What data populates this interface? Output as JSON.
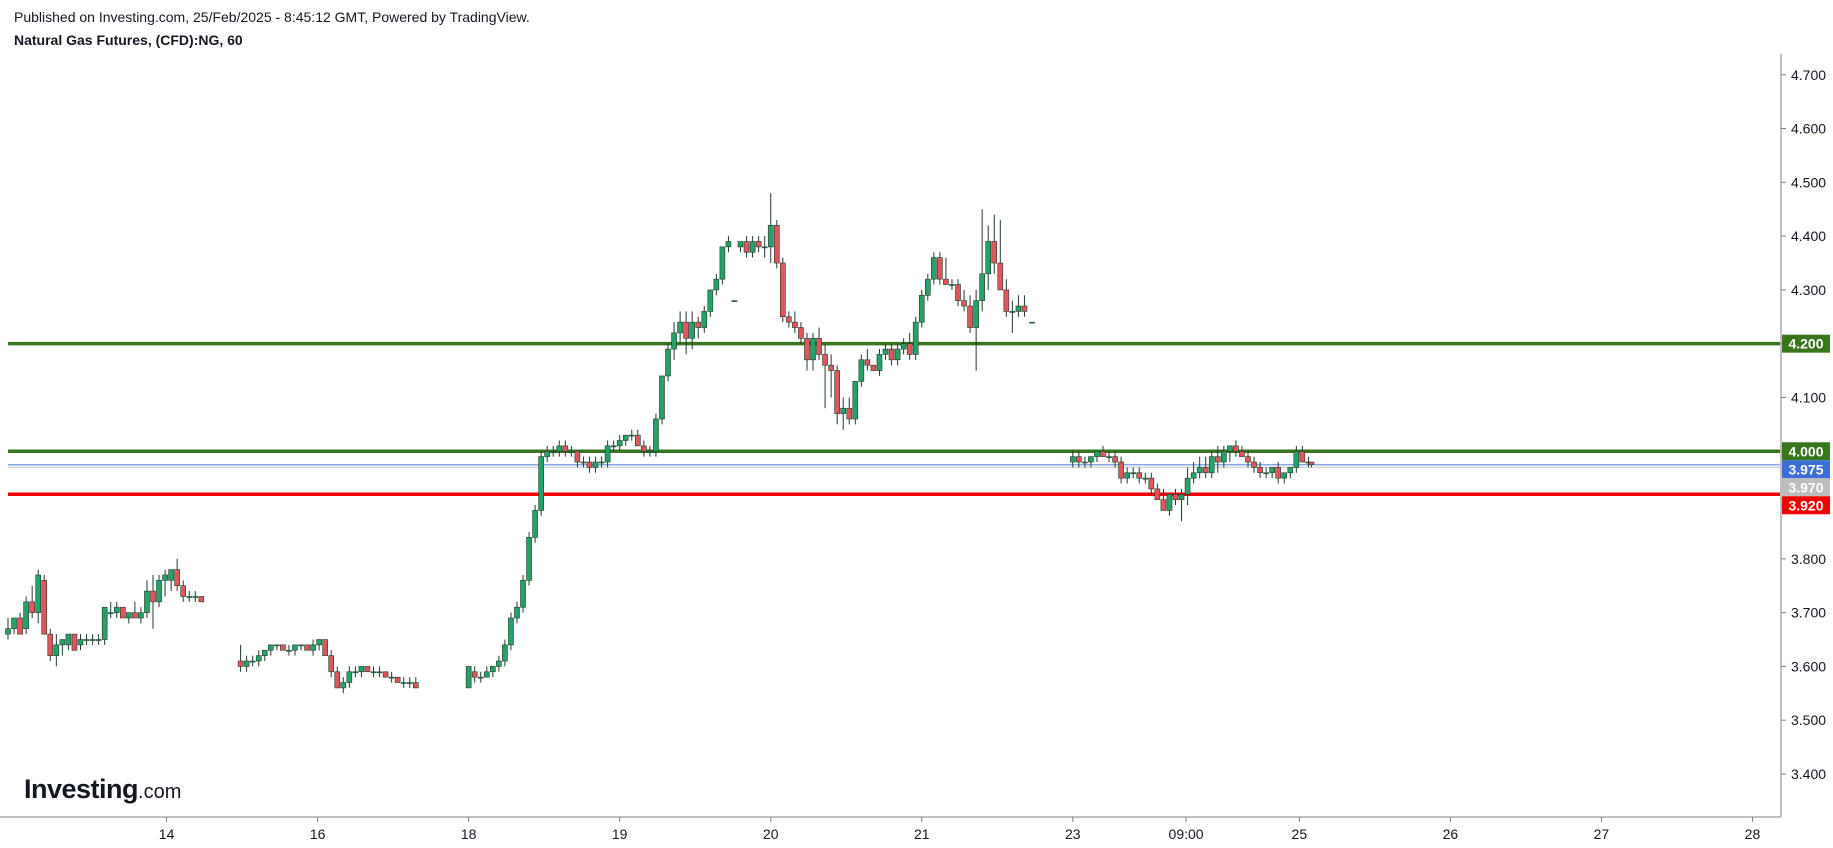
{
  "header": {
    "published": "Published on Investing.com, 25/Feb/2025 - 8:45:12 GMT, Powered by TradingView.",
    "title": "Natural Gas Futures, (CFD):NG, 60"
  },
  "logo": {
    "main": "Investing",
    "suffix": ".com"
  },
  "colors": {
    "up": "#26a269",
    "down": "#e0565b",
    "wick": "#1e3a2a",
    "support_green": "#38761d",
    "resistance_red": "#f00000",
    "current_price_badge": "#3b6fd6",
    "gray_badge": "#bdbdbd",
    "axis": "#7f7f7f"
  },
  "chart_data": {
    "type": "candlestick",
    "title": "Natural Gas Futures, (CFD):NG, 60",
    "timeframe": "60",
    "ylim": [
      3.32,
      4.72
    ],
    "y_ticks": [
      "4.700",
      "4.600",
      "4.500",
      "4.400",
      "4.300",
      "4.200",
      "4.100",
      "4.000",
      "3.900",
      "3.800",
      "3.700",
      "3.600",
      "3.500",
      "3.400"
    ],
    "x_ticks": [
      {
        "label": "14",
        "x": 0.0
      },
      {
        "label": "16",
        "x": 1.0
      },
      {
        "label": "18",
        "x": 2.0
      },
      {
        "label": "19",
        "x": 3.0
      },
      {
        "label": "20",
        "x": 4.0
      },
      {
        "label": "21",
        "x": 5.0
      },
      {
        "label": "23",
        "x": 6.0
      },
      {
        "label": "09:00",
        "x": 6.75
      },
      {
        "label": "25",
        "x": 7.5
      },
      {
        "label": "26",
        "x": 8.5
      },
      {
        "label": "27",
        "x": 9.5
      },
      {
        "label": "28",
        "x": 10.5
      }
    ],
    "x_range": [
      -1.05,
      10.55
    ],
    "horizontal_lines": [
      {
        "label": "4.200",
        "value": 4.2,
        "color": "#38761d"
      },
      {
        "label": "4.000",
        "value": 4.0,
        "color": "#38761d"
      },
      {
        "label": "3.920",
        "value": 3.92,
        "color": "#f00000"
      }
    ],
    "price_markers": [
      {
        "label": "3.975",
        "value": 3.975,
        "color": "#3b6fd6"
      },
      {
        "label": "3.970",
        "value": 3.97,
        "color": "#bdbdbd"
      }
    ],
    "candles": [
      [
        -1.05,
        3.66,
        3.69,
        3.65,
        3.67
      ],
      [
        -1.01,
        3.67,
        3.69,
        3.66,
        3.69
      ],
      [
        -0.97,
        3.69,
        3.7,
        3.66,
        3.66
      ],
      [
        -0.93,
        3.67,
        3.73,
        3.66,
        3.72
      ],
      [
        -0.89,
        3.72,
        3.75,
        3.69,
        3.7
      ],
      [
        -0.85,
        3.7,
        3.78,
        3.68,
        3.77
      ],
      [
        -0.81,
        3.76,
        3.77,
        3.66,
        3.66
      ],
      [
        -0.77,
        3.66,
        3.67,
        3.61,
        3.62
      ],
      [
        -0.73,
        3.62,
        3.66,
        3.6,
        3.64
      ],
      [
        -0.69,
        3.64,
        3.65,
        3.62,
        3.65
      ],
      [
        -0.65,
        3.64,
        3.66,
        3.63,
        3.66
      ],
      [
        -0.61,
        3.66,
        3.66,
        3.63,
        3.63
      ],
      [
        -0.57,
        3.64,
        3.66,
        3.63,
        3.65
      ],
      [
        -0.53,
        3.65,
        3.66,
        3.64,
        3.65
      ],
      [
        -0.49,
        3.65,
        3.66,
        3.64,
        3.65
      ],
      [
        -0.45,
        3.65,
        3.66,
        3.64,
        3.65
      ],
      [
        -0.41,
        3.65,
        3.71,
        3.64,
        3.71
      ],
      [
        -0.37,
        3.7,
        3.72,
        3.69,
        3.7
      ],
      [
        -0.33,
        3.7,
        3.72,
        3.69,
        3.71
      ],
      [
        -0.29,
        3.71,
        3.71,
        3.69,
        3.69
      ],
      [
        -0.25,
        3.69,
        3.7,
        3.68,
        3.7
      ],
      [
        -0.21,
        3.7,
        3.72,
        3.69,
        3.69
      ],
      [
        -0.17,
        3.69,
        3.71,
        3.68,
        3.7
      ],
      [
        -0.13,
        3.7,
        3.76,
        3.69,
        3.74
      ],
      [
        -0.09,
        3.74,
        3.77,
        3.67,
        3.72
      ],
      [
        -0.05,
        3.72,
        3.77,
        3.71,
        3.76
      ],
      [
        -0.01,
        3.76,
        3.78,
        3.73,
        3.77
      ],
      [
        0.03,
        3.76,
        3.78,
        3.74,
        3.78
      ],
      [
        0.07,
        3.78,
        3.8,
        3.74,
        3.75
      ],
      [
        0.11,
        3.75,
        3.76,
        3.72,
        3.73
      ],
      [
        0.15,
        3.73,
        3.74,
        3.72,
        3.73
      ],
      [
        0.19,
        3.73,
        3.74,
        3.72,
        3.73
      ],
      [
        0.23,
        3.73,
        3.73,
        3.72,
        3.72
      ],
      [
        0.49,
        3.61,
        3.64,
        3.59,
        3.6
      ],
      [
        0.53,
        3.6,
        3.62,
        3.59,
        3.61
      ],
      [
        0.57,
        3.61,
        3.62,
        3.6,
        3.61
      ],
      [
        0.61,
        3.61,
        3.63,
        3.6,
        3.62
      ],
      [
        0.65,
        3.62,
        3.63,
        3.61,
        3.63
      ],
      [
        0.69,
        3.63,
        3.64,
        3.62,
        3.64
      ],
      [
        0.73,
        3.64,
        3.64,
        3.63,
        3.64
      ],
      [
        0.77,
        3.64,
        3.64,
        3.63,
        3.63
      ],
      [
        0.81,
        3.63,
        3.64,
        3.62,
        3.63
      ],
      [
        0.85,
        3.63,
        3.64,
        3.62,
        3.64
      ],
      [
        0.89,
        3.64,
        3.64,
        3.63,
        3.64
      ],
      [
        0.93,
        3.64,
        3.64,
        3.63,
        3.63
      ],
      [
        0.97,
        3.63,
        3.65,
        3.62,
        3.64
      ],
      [
        1.01,
        3.64,
        3.65,
        3.63,
        3.65
      ],
      [
        1.05,
        3.65,
        3.65,
        3.62,
        3.62
      ],
      [
        1.09,
        3.62,
        3.63,
        3.58,
        3.59
      ],
      [
        1.13,
        3.59,
        3.6,
        3.56,
        3.56
      ],
      [
        1.17,
        3.56,
        3.58,
        3.55,
        3.57
      ],
      [
        1.21,
        3.57,
        3.6,
        3.56,
        3.59
      ],
      [
        1.25,
        3.59,
        3.6,
        3.58,
        3.59
      ],
      [
        1.29,
        3.59,
        3.6,
        3.58,
        3.6
      ],
      [
        1.33,
        3.6,
        3.6,
        3.59,
        3.59
      ],
      [
        1.37,
        3.59,
        3.6,
        3.58,
        3.59
      ],
      [
        1.41,
        3.59,
        3.6,
        3.58,
        3.59
      ],
      [
        1.45,
        3.59,
        3.59,
        3.58,
        3.58
      ],
      [
        1.49,
        3.58,
        3.59,
        3.57,
        3.58
      ],
      [
        1.53,
        3.58,
        3.58,
        3.57,
        3.57
      ],
      [
        1.57,
        3.57,
        3.58,
        3.56,
        3.57
      ],
      [
        1.61,
        3.57,
        3.58,
        3.56,
        3.57
      ],
      [
        1.65,
        3.57,
        3.58,
        3.56,
        3.56
      ],
      [
        2.0,
        3.56,
        3.6,
        3.56,
        3.6
      ],
      [
        2.04,
        3.59,
        3.6,
        3.57,
        3.58
      ],
      [
        2.08,
        3.58,
        3.59,
        3.57,
        3.58
      ],
      [
        2.12,
        3.58,
        3.6,
        3.58,
        3.59
      ],
      [
        2.16,
        3.59,
        3.6,
        3.58,
        3.6
      ],
      [
        2.2,
        3.6,
        3.62,
        3.59,
        3.61
      ],
      [
        2.24,
        3.61,
        3.65,
        3.6,
        3.64
      ],
      [
        2.28,
        3.64,
        3.7,
        3.63,
        3.69
      ],
      [
        2.32,
        3.69,
        3.72,
        3.68,
        3.71
      ],
      [
        2.36,
        3.71,
        3.77,
        3.7,
        3.76
      ],
      [
        2.4,
        3.76,
        3.85,
        3.75,
        3.84
      ],
      [
        2.44,
        3.84,
        3.9,
        3.83,
        3.89
      ],
      [
        2.48,
        3.89,
        4.0,
        3.88,
        3.99
      ],
      [
        2.52,
        3.99,
        4.01,
        3.98,
        4.0
      ],
      [
        2.56,
        4.0,
        4.01,
        3.99,
        4.0
      ],
      [
        2.6,
        4.0,
        4.02,
        3.99,
        4.01
      ],
      [
        2.64,
        4.01,
        4.02,
        3.99,
        4.0
      ],
      [
        2.68,
        4.0,
        4.01,
        3.99,
        4.0
      ],
      [
        2.72,
        4.0,
        4.0,
        3.97,
        3.98
      ],
      [
        2.76,
        3.98,
        3.99,
        3.97,
        3.98
      ],
      [
        2.8,
        3.98,
        3.99,
        3.96,
        3.97
      ],
      [
        2.84,
        3.97,
        3.99,
        3.96,
        3.98
      ],
      [
        2.88,
        3.98,
        3.99,
        3.97,
        3.98
      ],
      [
        2.92,
        3.98,
        4.02,
        3.97,
        4.01
      ],
      [
        2.96,
        4.01,
        4.02,
        4.0,
        4.01
      ],
      [
        3.0,
        4.01,
        4.03,
        4.0,
        4.02
      ],
      [
        3.04,
        4.02,
        4.03,
        4.01,
        4.03
      ],
      [
        3.08,
        4.03,
        4.04,
        4.02,
        4.03
      ],
      [
        3.12,
        4.03,
        4.04,
        4.01,
        4.01
      ],
      [
        3.16,
        4.01,
        4.02,
        3.99,
        4.0
      ],
      [
        3.2,
        4.0,
        4.01,
        3.99,
        4.0
      ],
      [
        3.24,
        4.0,
        4.07,
        3.99,
        4.06
      ],
      [
        3.28,
        4.06,
        4.14,
        4.05,
        4.14
      ],
      [
        3.32,
        4.14,
        4.2,
        4.13,
        4.19
      ],
      [
        3.36,
        4.19,
        4.24,
        4.17,
        4.22
      ],
      [
        3.4,
        4.22,
        4.26,
        4.2,
        4.24
      ],
      [
        3.44,
        4.24,
        4.26,
        4.18,
        4.21
      ],
      [
        3.48,
        4.21,
        4.26,
        4.19,
        4.24
      ],
      [
        3.52,
        4.24,
        4.25,
        4.21,
        4.23
      ],
      [
        3.56,
        4.23,
        4.27,
        4.22,
        4.26
      ],
      [
        3.6,
        4.26,
        4.3,
        4.25,
        4.3
      ],
      [
        3.64,
        4.3,
        4.33,
        4.29,
        4.32
      ],
      [
        3.68,
        4.32,
        4.38,
        4.31,
        4.38
      ],
      [
        3.72,
        4.38,
        4.4,
        4.37,
        4.39
      ],
      [
        3.76,
        4.28,
        4.28,
        4.28,
        4.28
      ],
      [
        3.8,
        4.38,
        4.39,
        4.37,
        4.39
      ],
      [
        3.84,
        4.39,
        4.4,
        4.36,
        4.37
      ],
      [
        3.88,
        4.37,
        4.4,
        4.36,
        4.39
      ],
      [
        3.92,
        4.39,
        4.4,
        4.37,
        4.38
      ],
      [
        3.96,
        4.38,
        4.4,
        4.36,
        4.38
      ],
      [
        4.0,
        4.38,
        4.48,
        4.35,
        4.42
      ],
      [
        4.04,
        4.42,
        4.43,
        4.34,
        4.35
      ],
      [
        4.08,
        4.35,
        4.36,
        4.24,
        4.25
      ],
      [
        4.12,
        4.25,
        4.26,
        4.23,
        4.24
      ],
      [
        4.16,
        4.24,
        4.26,
        4.22,
        4.23
      ],
      [
        4.2,
        4.23,
        4.24,
        4.2,
        4.21
      ],
      [
        4.24,
        4.21,
        4.22,
        4.15,
        4.17
      ],
      [
        4.28,
        4.17,
        4.22,
        4.15,
        4.21
      ],
      [
        4.32,
        4.21,
        4.23,
        4.17,
        4.18
      ],
      [
        4.36,
        4.18,
        4.2,
        4.08,
        4.16
      ],
      [
        4.4,
        4.16,
        4.18,
        4.1,
        4.15
      ],
      [
        4.44,
        4.15,
        4.16,
        4.05,
        4.07
      ],
      [
        4.48,
        4.07,
        4.1,
        4.04,
        4.08
      ],
      [
        4.52,
        4.08,
        4.1,
        4.05,
        4.06
      ],
      [
        4.56,
        4.06,
        4.13,
        4.05,
        4.13
      ],
      [
        4.6,
        4.13,
        4.18,
        4.12,
        4.17
      ],
      [
        4.64,
        4.17,
        4.19,
        4.15,
        4.16
      ],
      [
        4.68,
        4.16,
        4.16,
        4.15,
        4.15
      ],
      [
        4.72,
        4.15,
        4.19,
        4.14,
        4.18
      ],
      [
        4.76,
        4.18,
        4.2,
        4.17,
        4.19
      ],
      [
        4.8,
        4.19,
        4.2,
        4.16,
        4.17
      ],
      [
        4.84,
        4.17,
        4.2,
        4.16,
        4.19
      ],
      [
        4.88,
        4.19,
        4.21,
        4.18,
        4.2
      ],
      [
        4.92,
        4.2,
        4.22,
        4.17,
        4.18
      ],
      [
        4.96,
        4.18,
        4.25,
        4.17,
        4.24
      ],
      [
        5.0,
        4.24,
        4.3,
        4.23,
        4.29
      ],
      [
        5.04,
        4.29,
        4.33,
        4.28,
        4.32
      ],
      [
        5.08,
        4.32,
        4.37,
        4.31,
        4.36
      ],
      [
        5.12,
        4.36,
        4.37,
        4.31,
        4.32
      ],
      [
        5.16,
        4.32,
        4.36,
        4.31,
        4.31
      ],
      [
        5.2,
        4.31,
        4.32,
        4.3,
        4.31
      ],
      [
        5.24,
        4.31,
        4.32,
        4.27,
        4.28
      ],
      [
        5.28,
        4.28,
        4.3,
        4.26,
        4.27
      ],
      [
        5.32,
        4.27,
        4.29,
        4.22,
        4.23
      ],
      [
        5.36,
        4.23,
        4.3,
        4.15,
        4.28
      ],
      [
        5.4,
        4.28,
        4.45,
        4.26,
        4.33
      ],
      [
        5.44,
        4.33,
        4.42,
        4.3,
        4.39
      ],
      [
        5.48,
        4.39,
        4.44,
        4.33,
        4.35
      ],
      [
        5.52,
        4.35,
        4.43,
        4.3,
        4.3
      ],
      [
        5.56,
        4.3,
        4.32,
        4.25,
        4.26
      ],
      [
        5.6,
        4.26,
        4.28,
        4.22,
        4.26
      ],
      [
        5.64,
        4.26,
        4.29,
        4.25,
        4.27
      ],
      [
        5.68,
        4.27,
        4.29,
        4.25,
        4.26
      ],
      [
        5.73,
        4.24,
        4.24,
        4.24,
        4.24
      ],
      [
        6.0,
        3.98,
        4.0,
        3.97,
        3.99
      ],
      [
        6.04,
        3.99,
        4.0,
        3.97,
        3.98
      ],
      [
        6.08,
        3.98,
        3.99,
        3.97,
        3.98
      ],
      [
        6.12,
        3.98,
        3.99,
        3.97,
        3.99
      ],
      [
        6.16,
        3.99,
        4.0,
        3.98,
        4.0
      ],
      [
        6.2,
        4.0,
        4.01,
        3.99,
        3.99
      ],
      [
        6.24,
        3.99,
        4.0,
        3.98,
        3.99
      ],
      [
        6.28,
        3.99,
        4.0,
        3.97,
        3.98
      ],
      [
        6.32,
        3.98,
        3.99,
        3.94,
        3.95
      ],
      [
        6.36,
        3.95,
        3.97,
        3.94,
        3.96
      ],
      [
        6.4,
        3.96,
        3.97,
        3.95,
        3.96
      ],
      [
        6.44,
        3.96,
        3.97,
        3.94,
        3.95
      ],
      [
        6.48,
        3.95,
        3.96,
        3.94,
        3.95
      ],
      [
        6.52,
        3.95,
        3.96,
        3.92,
        3.93
      ],
      [
        6.56,
        3.93,
        3.94,
        3.91,
        3.91
      ],
      [
        6.6,
        3.91,
        3.93,
        3.89,
        3.89
      ],
      [
        6.64,
        3.89,
        3.92,
        3.88,
        3.92
      ],
      [
        6.68,
        3.92,
        3.93,
        3.9,
        3.91
      ],
      [
        6.72,
        3.91,
        3.93,
        3.87,
        3.92
      ],
      [
        6.76,
        3.92,
        3.97,
        3.9,
        3.95
      ],
      [
        6.8,
        3.95,
        3.98,
        3.94,
        3.96
      ],
      [
        6.84,
        3.96,
        3.99,
        3.95,
        3.97
      ],
      [
        6.88,
        3.97,
        3.99,
        3.95,
        3.96
      ],
      [
        6.92,
        3.96,
        4.0,
        3.95,
        3.99
      ],
      [
        6.96,
        3.99,
        4.01,
        3.96,
        3.98
      ],
      [
        7.0,
        3.98,
        4.01,
        3.97,
        4.0
      ],
      [
        7.04,
        4.0,
        4.01,
        3.98,
        4.01
      ],
      [
        7.08,
        4.01,
        4.02,
        3.99,
        4.0
      ],
      [
        7.12,
        4.0,
        4.01,
        3.99,
        3.99
      ],
      [
        7.16,
        3.99,
        4.0,
        3.97,
        3.98
      ],
      [
        7.2,
        3.98,
        3.99,
        3.96,
        3.97
      ],
      [
        7.24,
        3.97,
        3.98,
        3.95,
        3.96
      ],
      [
        7.28,
        3.96,
        3.97,
        3.95,
        3.96
      ],
      [
        7.32,
        3.96,
        3.97,
        3.95,
        3.97
      ],
      [
        7.36,
        3.97,
        3.98,
        3.94,
        3.95
      ],
      [
        7.4,
        3.95,
        3.96,
        3.94,
        3.96
      ],
      [
        7.44,
        3.96,
        3.97,
        3.95,
        3.97
      ],
      [
        7.48,
        3.97,
        4.01,
        3.96,
        4.0
      ],
      [
        7.52,
        4.0,
        4.01,
        3.98,
        3.98
      ],
      [
        7.56,
        3.98,
        3.99,
        3.97,
        3.98
      ],
      [
        7.58,
        3.98,
        3.98,
        3.97,
        3.975
      ]
    ]
  }
}
